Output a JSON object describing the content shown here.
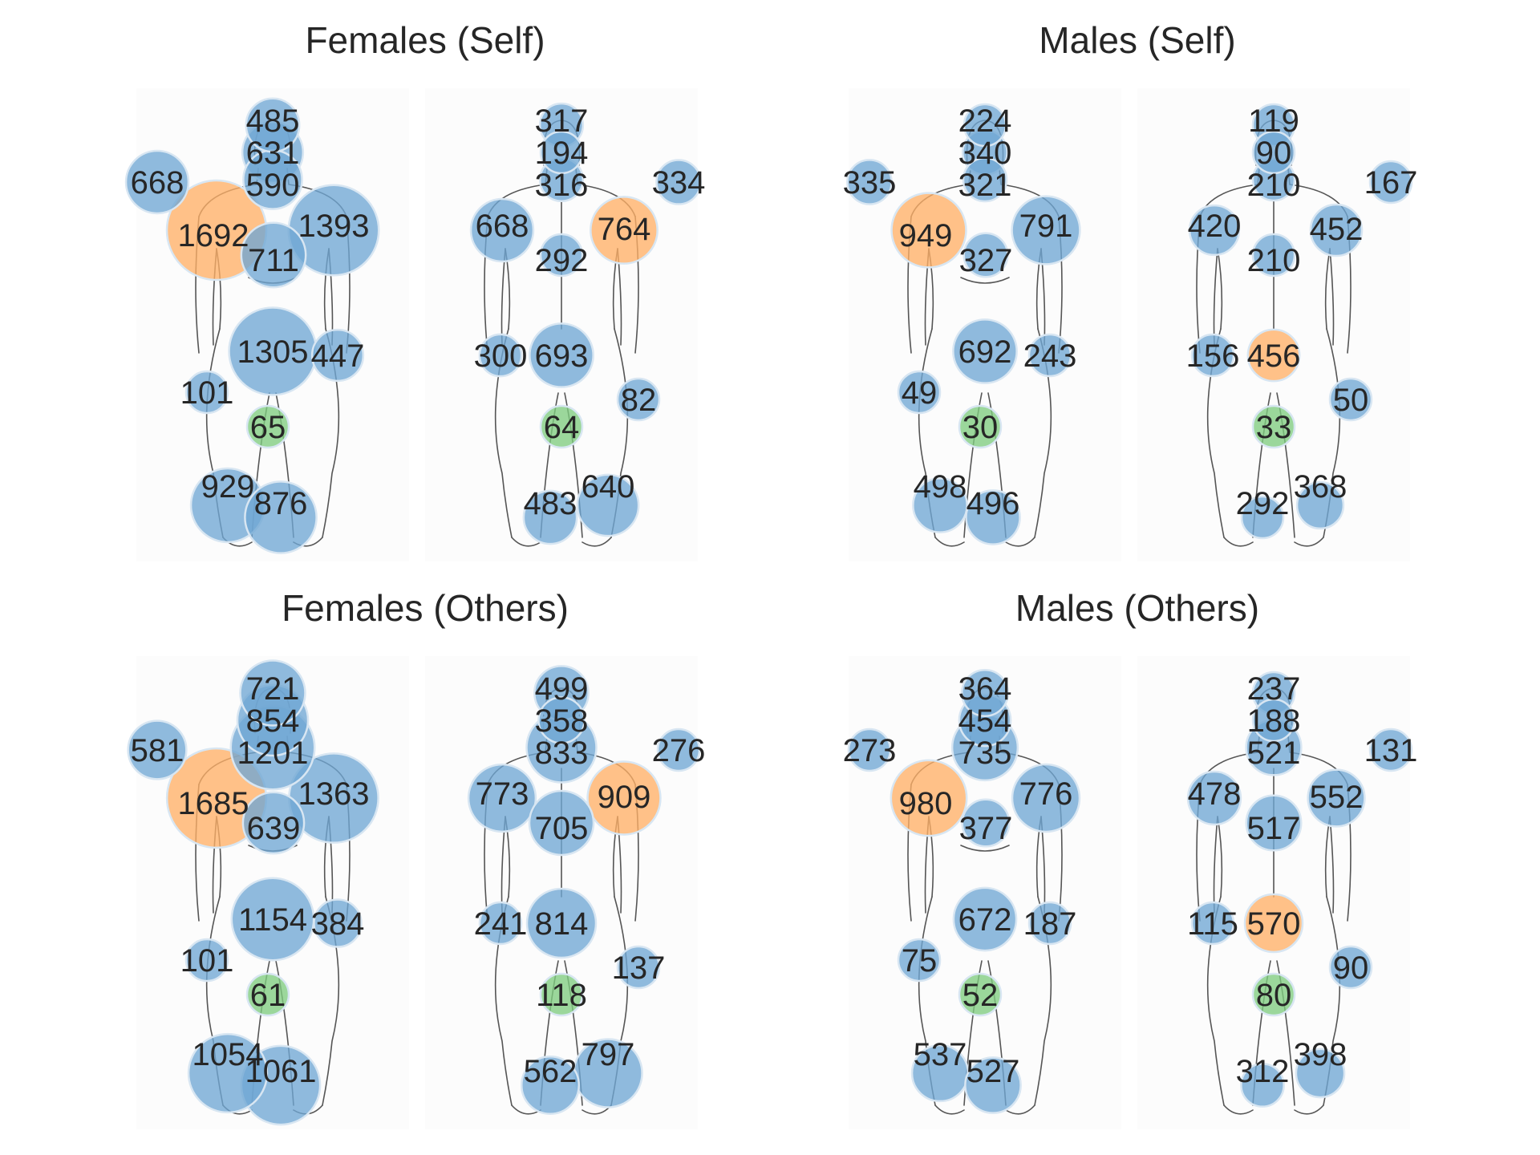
{
  "colors": {
    "default": "#6fa6d3",
    "highlight_max": "#ffb066",
    "highlight_min": "#7fcc7f",
    "edge": "#d8e6f2",
    "text": "#262626"
  },
  "chart_data": [
    {
      "type": "bubble-bodymap",
      "title": "Females (Self)",
      "front": {
        "head_top": 485,
        "head_mid": 631,
        "head_neck": 590,
        "right_hand": 668,
        "right_chest": 1692,
        "left_chest": 1393,
        "abdomen": 711,
        "pelvis": 1305,
        "left_hand": 447,
        "right_thigh": 101,
        "genitals": 65,
        "right_foot": 929,
        "left_foot": 876
      },
      "back": {
        "head_top": 317,
        "head_mid": 194,
        "neck": 316,
        "right_hand": 334,
        "left_shoulder": 668,
        "right_shoulder": 764,
        "upper_back": 292,
        "left_hand": 300,
        "lower_back": 693,
        "right_thigh": 82,
        "buttocks": 64,
        "left_foot": 483,
        "right_foot": 640
      }
    },
    {
      "type": "bubble-bodymap",
      "title": "Males (Self)",
      "front": {
        "head_top": 224,
        "head_mid": 340,
        "head_neck": 321,
        "right_hand": 335,
        "right_chest": 949,
        "left_chest": 791,
        "abdomen": 327,
        "pelvis": 692,
        "left_hand": 243,
        "right_thigh": 49,
        "genitals": 30,
        "right_foot": 498,
        "left_foot": 496
      },
      "back": {
        "head_top": 119,
        "head_mid": 90,
        "neck": 210,
        "right_hand": 167,
        "left_shoulder": 420,
        "right_shoulder": 452,
        "upper_back": 210,
        "left_hand": 156,
        "lower_back": 456,
        "right_thigh": 50,
        "buttocks": 33,
        "left_foot": 292,
        "right_foot": 368
      }
    },
    {
      "type": "bubble-bodymap",
      "title": "Females (Others)",
      "front": {
        "head_top": 721,
        "head_mid": 854,
        "head_neck": 1201,
        "right_hand": 581,
        "right_chest": 1685,
        "left_chest": 1363,
        "abdomen": 639,
        "pelvis": 1154,
        "left_hand": 384,
        "right_thigh": 101,
        "genitals": 61,
        "right_foot": 1054,
        "left_foot": 1061
      },
      "back": {
        "head_top": 499,
        "head_mid": 358,
        "neck": 833,
        "right_hand": 276,
        "left_shoulder": 773,
        "right_shoulder": 909,
        "upper_back": 705,
        "left_hand": 241,
        "lower_back": 814,
        "right_thigh": 137,
        "buttocks": 118,
        "left_foot": 562,
        "right_foot": 797
      }
    },
    {
      "type": "bubble-bodymap",
      "title": "Males (Others)",
      "front": {
        "head_top": 364,
        "head_mid": 454,
        "head_neck": 735,
        "right_hand": 273,
        "right_chest": 980,
        "left_chest": 776,
        "abdomen": 377,
        "pelvis": 672,
        "left_hand": 187,
        "right_thigh": 75,
        "genitals": 52,
        "right_foot": 537,
        "left_foot": 527
      },
      "back": {
        "head_top": 237,
        "head_mid": 188,
        "neck": 521,
        "right_hand": 131,
        "left_shoulder": 478,
        "right_shoulder": 552,
        "upper_back": 517,
        "left_hand": 115,
        "lower_back": 570,
        "right_thigh": 90,
        "buttocks": 80,
        "left_foot": 312,
        "right_foot": 398
      }
    }
  ]
}
